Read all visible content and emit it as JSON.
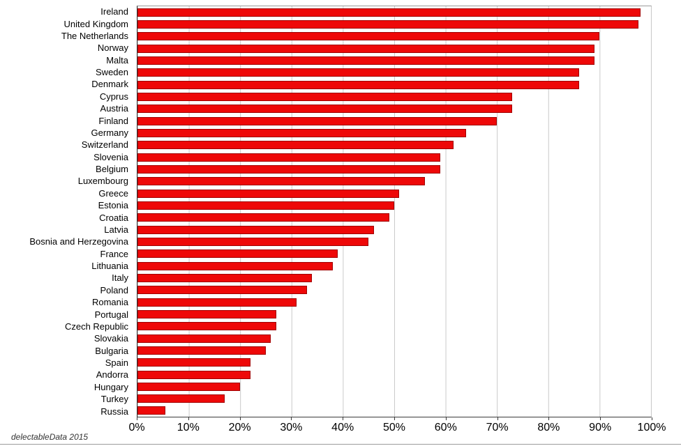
{
  "watermark": "delectableData 2015",
  "colors": {
    "bar_fill": "#ee0808",
    "bar_border": "#a00000",
    "gridline": "#c9c9c9",
    "axis": "#3a3a3a"
  },
  "chart_data": {
    "type": "bar",
    "orientation": "horizontal",
    "title": "",
    "xlabel": "",
    "ylabel": "",
    "xlim": [
      0,
      100
    ],
    "grid": "vertical",
    "legend": "none",
    "x_ticks": [
      "0%",
      "10%",
      "20%",
      "30%",
      "40%",
      "50%",
      "60%",
      "70%",
      "80%",
      "90%",
      "100%"
    ],
    "categories": [
      "Ireland",
      "United Kingdom",
      "The Netherlands",
      "Norway",
      "Malta",
      "Sweden",
      "Denmark",
      "Cyprus",
      "Austria",
      "Finland",
      "Germany",
      "Switzerland",
      "Slovenia",
      "Belgium",
      "Luxembourg",
      "Greece",
      "Estonia",
      "Croatia",
      "Latvia",
      "Bosnia and Herzegovina",
      "France",
      "Lithuania",
      "Italy",
      "Poland",
      "Romania",
      "Portugal",
      "Czech Republic",
      "Slovakia",
      "Bulgaria",
      "Spain",
      "Andorra",
      "Hungary",
      "Turkey",
      "Russia"
    ],
    "values": [
      98,
      97.5,
      90,
      89,
      89,
      86,
      86,
      73,
      73,
      70,
      64,
      61.5,
      59,
      59,
      56,
      51,
      50,
      49,
      46,
      45,
      39,
      38,
      34,
      33,
      31,
      27,
      27,
      26,
      25,
      22,
      22,
      20,
      17,
      5.5
    ]
  }
}
